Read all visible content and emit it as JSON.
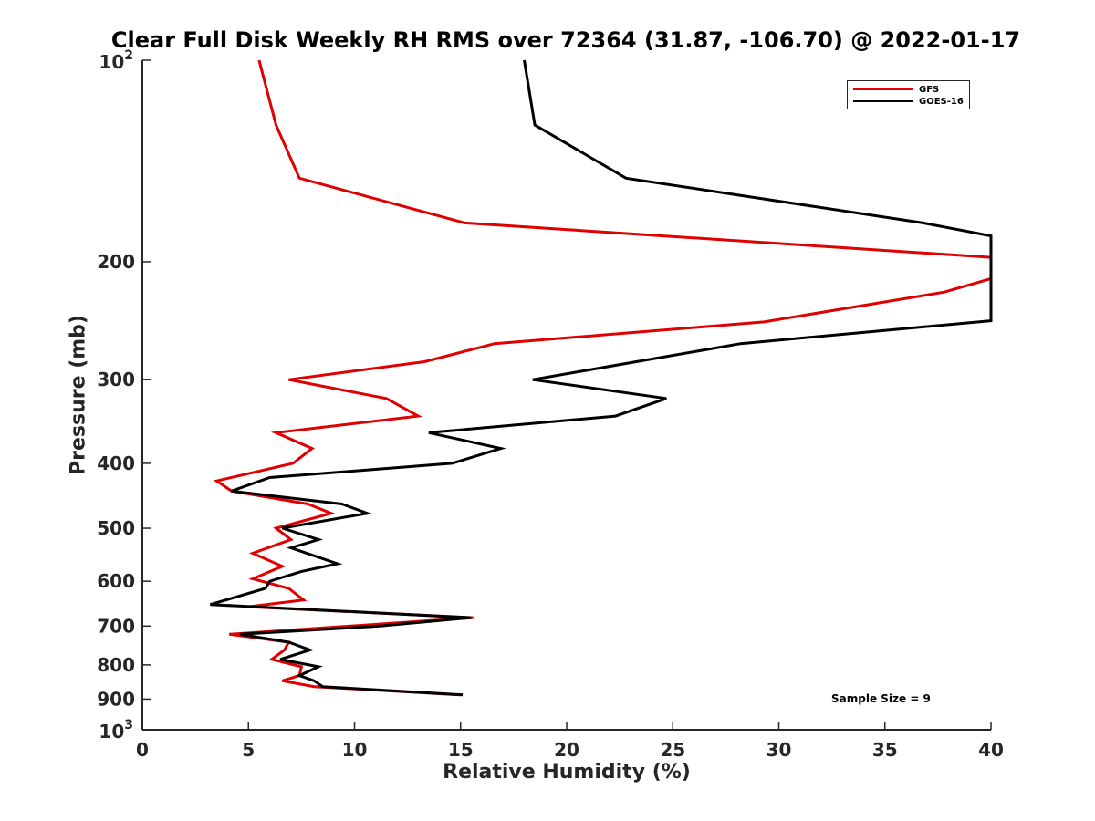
{
  "chart_data": {
    "type": "line",
    "title": "Clear Full Disk Weekly RH RMS over 72364 (31.87, -106.70) @ 2022-01-17",
    "xlabel": "Relative Humidity (%)",
    "ylabel": "Pressure (mb)",
    "xlim": [
      0,
      40
    ],
    "ylim": [
      100,
      1000
    ],
    "y_scale": "log",
    "y_reversed": true,
    "grid": false,
    "legend_position": "top-right",
    "x_ticks": [
      "0",
      "5",
      "10",
      "15",
      "20",
      "25",
      "30",
      "35",
      "40"
    ],
    "y_ticks": [
      {
        "value": 100,
        "base": "10",
        "exp": "2"
      },
      {
        "value": 200,
        "label": "200"
      },
      {
        "value": 300,
        "label": "300"
      },
      {
        "value": 400,
        "label": "400"
      },
      {
        "value": 500,
        "label": "500"
      },
      {
        "value": 600,
        "label": "600"
      },
      {
        "value": 700,
        "label": "700"
      },
      {
        "value": 800,
        "label": "800"
      },
      {
        "value": 900,
        "label": "900"
      },
      {
        "value": 1000,
        "base": "10",
        "exp": "3"
      }
    ],
    "series": [
      {
        "name": "GFS",
        "color": "#e00000",
        "points": [
          [
            5.5,
            100
          ],
          [
            6.3,
            125
          ],
          [
            7.4,
            150
          ],
          [
            15.2,
            175
          ],
          [
            40,
            197
          ],
          [
            40,
            212
          ],
          [
            37.8,
            222
          ],
          [
            29.3,
            246
          ],
          [
            16.6,
            265
          ],
          [
            13.3,
            282
          ],
          [
            6.9,
            300
          ],
          [
            11.5,
            320
          ],
          [
            13,
            340
          ],
          [
            6.3,
            360
          ],
          [
            8,
            380
          ],
          [
            7.1,
            400
          ],
          [
            3.5,
            425
          ],
          [
            4.2,
            440
          ],
          [
            7.8,
            460
          ],
          [
            8.9,
            475
          ],
          [
            6.3,
            500
          ],
          [
            7,
            520
          ],
          [
            5.2,
            545
          ],
          [
            6.6,
            570
          ],
          [
            5.2,
            595
          ],
          [
            6.9,
            615
          ],
          [
            7.6,
            640
          ],
          [
            5,
            655
          ],
          [
            15.6,
            680
          ],
          [
            4.1,
            720
          ],
          [
            6.9,
            740
          ],
          [
            6.7,
            760
          ],
          [
            6.1,
            785
          ],
          [
            7.5,
            805
          ],
          [
            7.4,
            830
          ],
          [
            6.6,
            845
          ],
          [
            8.1,
            862
          ],
          [
            15,
            887
          ]
        ]
      },
      {
        "name": "GOES-16",
        "color": "#000000",
        "points": [
          [
            18,
            100
          ],
          [
            18.5,
            125
          ],
          [
            22.8,
            150
          ],
          [
            36.8,
            175
          ],
          [
            40,
            183
          ],
          [
            40,
            245
          ],
          [
            28.2,
            265
          ],
          [
            18.4,
            300
          ],
          [
            24.7,
            320
          ],
          [
            22.3,
            340
          ],
          [
            13.5,
            360
          ],
          [
            16.9,
            380
          ],
          [
            14.6,
            400
          ],
          [
            6,
            420
          ],
          [
            4.2,
            440
          ],
          [
            9.4,
            460
          ],
          [
            10.6,
            475
          ],
          [
            6.6,
            500
          ],
          [
            8.3,
            520
          ],
          [
            7,
            535
          ],
          [
            9.2,
            565
          ],
          [
            7.5,
            580
          ],
          [
            6,
            600
          ],
          [
            5.8,
            615
          ],
          [
            3.2,
            650
          ],
          [
            15.5,
            680
          ],
          [
            11.2,
            700
          ],
          [
            4.6,
            720
          ],
          [
            6.9,
            740
          ],
          [
            7.9,
            760
          ],
          [
            6.5,
            785
          ],
          [
            8.3,
            805
          ],
          [
            7.4,
            830
          ],
          [
            8.1,
            845
          ],
          [
            8.5,
            862
          ],
          [
            15.1,
            887
          ]
        ]
      }
    ],
    "annotation": "Sample Size = 9"
  }
}
